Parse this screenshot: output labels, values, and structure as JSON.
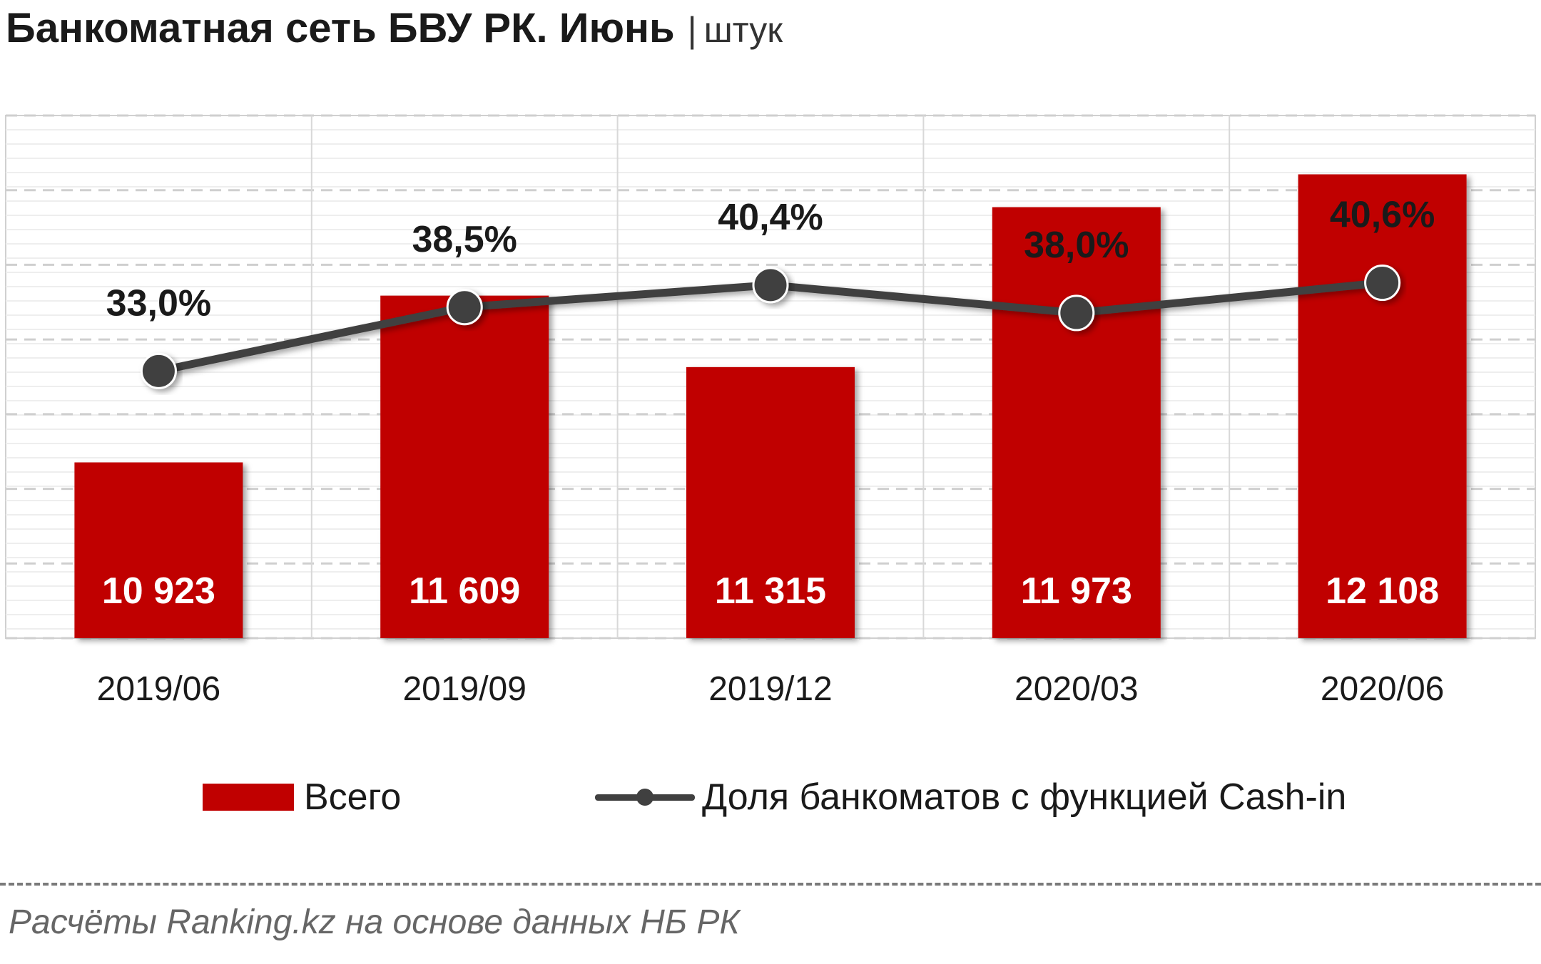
{
  "title": {
    "main": "Банкоматная сеть БВУ РК. Июнь",
    "separator": "|",
    "unit": "штук"
  },
  "chart_data": {
    "type": "bar",
    "categories": [
      "2019/06",
      "2019/09",
      "2019/12",
      "2020/03",
      "2020/06"
    ],
    "series": [
      {
        "name": "Всего",
        "type": "bar",
        "values": [
          10923,
          11609,
          11315,
          11973,
          12108
        ],
        "labels": [
          "10 923",
          "11 609",
          "11 315",
          "11 973",
          "12 108"
        ],
        "color": "#c00000",
        "axis": "primary"
      },
      {
        "name": "Доля банкоматов с функцией Cash-in",
        "type": "line",
        "values": [
          33.0,
          38.5,
          40.4,
          38.0,
          40.6
        ],
        "labels": [
          "33,0%",
          "38,5%",
          "40,4%",
          "38,0%",
          "40,6%"
        ],
        "color": "#404040",
        "axis": "secondary"
      }
    ],
    "ylim": [
      10200,
      12350
    ],
    "y2lim": [
      10,
      55
    ],
    "grid": true,
    "legend": "bottom"
  },
  "legend": {
    "bar_label": "Всего",
    "line_label": "Доля банкоматов с функцией Cash-in"
  },
  "source": "Расчёты Ranking.kz на основе данных  НБ РК"
}
